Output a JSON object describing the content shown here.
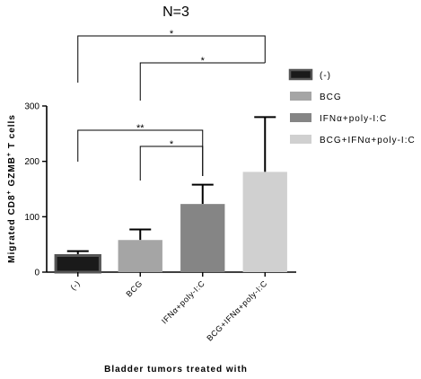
{
  "chart_data": {
    "type": "bar",
    "title": "N=3",
    "xlabel": "Bladder tumors treated with",
    "ylabel_parts": [
      "Migrated CD8",
      "+",
      " GZMB",
      "+",
      " T cells"
    ],
    "ylim": [
      0,
      300
    ],
    "yticks": [
      0,
      100,
      200,
      300
    ],
    "categories": [
      "(-)",
      "BCG",
      "IFNα+poly-I:C",
      "BCG+IFNα+poly-I:C"
    ],
    "values": [
      30,
      58,
      123,
      181
    ],
    "errors": [
      8,
      19,
      35,
      99
    ],
    "colors": [
      "#1a1a1a",
      "#a5a5a5",
      "#858585",
      "#d0d0d0"
    ],
    "legend": {
      "position": "right",
      "entries": [
        "(-)",
        "BCG",
        "IFNα+poly-I:C",
        "BCG+IFNα+poly-I:C"
      ]
    },
    "significance": [
      {
        "from": 0,
        "to": 3,
        "label": "*"
      },
      {
        "from": 1,
        "to": 3,
        "label": "*"
      },
      {
        "from": 0,
        "to": 2,
        "label": "**"
      },
      {
        "from": 1,
        "to": 2,
        "label": "*"
      }
    ],
    "grid": false
  }
}
